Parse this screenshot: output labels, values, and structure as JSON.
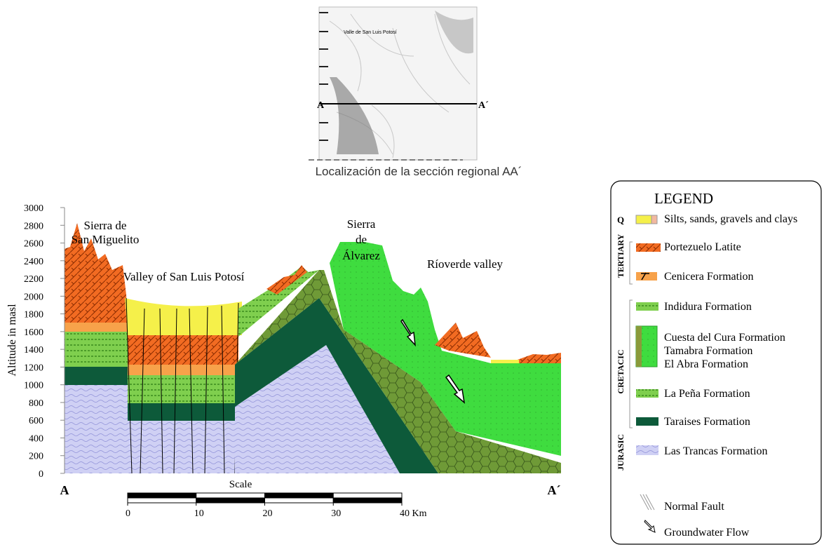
{
  "inset": {
    "map_label": "Valle de San Luis Potosí",
    "start": "A",
    "end": "A´",
    "caption": "Localización de la sección regional AA´"
  },
  "section": {
    "y_axis_label": "Altitude in masl",
    "ylim": [
      0,
      3000
    ],
    "yticks": [
      0,
      200,
      400,
      600,
      800,
      1000,
      1200,
      1400,
      1600,
      1800,
      2000,
      2200,
      2400,
      2600,
      2800,
      3000
    ],
    "labels": {
      "sierra_san_miguelito": [
        "Sierra de",
        "San Miguelito"
      ],
      "valley_slp": "Valley of San Luis Potosí",
      "sierra_alvarez": [
        "Sierra",
        "de",
        "Álvarez"
      ],
      "rioverde": "Ríoverde valley"
    },
    "start": "A",
    "end": "A´"
  },
  "scale": {
    "title": "Scale",
    "xlim": [
      0,
      40
    ],
    "ticks": [
      0,
      10,
      20,
      30,
      {
        "value": 40,
        "label": "40 Km"
      }
    ]
  },
  "legend": {
    "title": "LEGEND",
    "groups": [
      "Q",
      "TERTIARY",
      "CRETACIC",
      "JURASIC"
    ],
    "items": [
      {
        "label": "Silts, sands, gravels and clays"
      },
      {
        "label": "Portezuelo Latite"
      },
      {
        "label": "Cenicera Formation"
      },
      {
        "label": "Indidura Formation"
      },
      {
        "label": [
          "Cuesta del Cura Formation",
          "Tamabra Formation",
          "El Abra Formation"
        ]
      },
      {
        "label": "La Peña Formation"
      },
      {
        "label": "Taraises Formation"
      },
      {
        "label": "Las Trancas Formation"
      },
      {
        "label": "Normal Fault"
      },
      {
        "label": "Groundwater Flow"
      }
    ]
  }
}
